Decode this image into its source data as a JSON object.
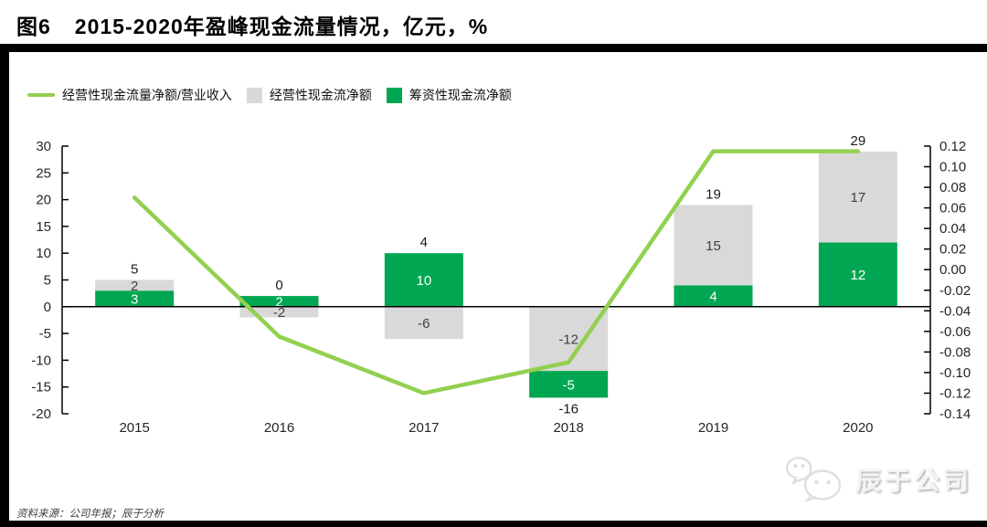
{
  "header": {
    "figure_label": "图6",
    "title": "2015-2020年盈峰现金流量情况，亿元，%"
  },
  "legend": [
    {
      "label": "经营性现金流量净额/营业收入",
      "type": "line",
      "color": "#92D050"
    },
    {
      "label": "经营性现金流净额",
      "type": "box",
      "color": "#D9D9D9"
    },
    {
      "label": "筹资性现金流净额",
      "type": "box",
      "color": "#00A651"
    }
  ],
  "chart_data": {
    "type": "bar",
    "subtype": "stacked bars with secondary-axis line",
    "categories": [
      "2015",
      "2016",
      "2017",
      "2018",
      "2019",
      "2020"
    ],
    "series": [
      {
        "name": "筹资性现金流净额",
        "type": "bar",
        "axis": "left",
        "color": "#00A651",
        "label_color": "#ffffff",
        "values": [
          3,
          2,
          10,
          -5,
          4,
          12
        ]
      },
      {
        "name": "经营性现金流净额",
        "type": "bar",
        "axis": "left",
        "color": "#D9D9D9",
        "label_color": "#404040",
        "values": [
          2,
          -2,
          -6,
          -12,
          15,
          17
        ]
      },
      {
        "name": "经营性现金流量净额/营业收入",
        "type": "line",
        "axis": "right",
        "color": "#92D050",
        "values": [
          0.07,
          -0.065,
          -0.12,
          -0.09,
          0.115,
          0.115
        ]
      }
    ],
    "totals": [
      5,
      0,
      4,
      -16,
      19,
      29
    ],
    "left_axis": {
      "min": -20,
      "max": 30,
      "step": 5
    },
    "right_axis": {
      "min": -0.14,
      "max": 0.12,
      "step": 0.02
    },
    "grid": false,
    "legend_position": "top-left",
    "units": "bars: 亿元 (left axis); line: ratio % (right axis)"
  },
  "footer": {
    "source": "资料来源：公司年报；辰于分析"
  },
  "watermark": {
    "text": "辰于公司",
    "icon": "wechat-icon"
  },
  "colors": {
    "bar_green": "#00A651",
    "bar_gray": "#D9D9D9",
    "line_green": "#92D050",
    "axis_text": "#262626",
    "frame": "#000000"
  }
}
